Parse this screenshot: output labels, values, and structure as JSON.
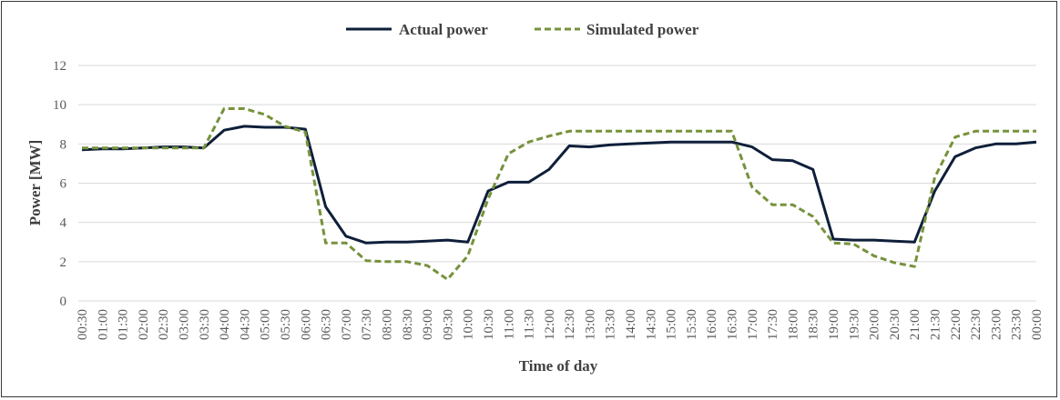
{
  "chart_data": {
    "type": "line",
    "title": "",
    "xlabel": "Time of day",
    "ylabel": "Power [MW]",
    "ylim": [
      0,
      12
    ],
    "yticks": [
      0,
      2,
      4,
      6,
      8,
      10,
      12
    ],
    "grid": "horizontal",
    "legend_position": "top",
    "categories": [
      "00:30",
      "01:00",
      "01:30",
      "02:00",
      "02:30",
      "03:00",
      "03:30",
      "04:00",
      "04:30",
      "05:00",
      "05:30",
      "06:00",
      "06:30",
      "07:00",
      "07:30",
      "08:00",
      "08:30",
      "09:00",
      "09:30",
      "10:00",
      "10:30",
      "11:00",
      "11:30",
      "12:00",
      "12:30",
      "13:00",
      "13:30",
      "14:00",
      "14:30",
      "15:00",
      "15:30",
      "16:00",
      "16:30",
      "17:00",
      "17:30",
      "18:00",
      "18:30",
      "19:00",
      "19:30",
      "20:00",
      "20:30",
      "21:00",
      "21:30",
      "22:00",
      "22:30",
      "23:00",
      "23:30",
      "00:00"
    ],
    "series": [
      {
        "name": "Actual power",
        "color": "#0f1f3a",
        "style": "solid",
        "values": [
          7.7,
          7.75,
          7.75,
          7.8,
          7.85,
          7.85,
          7.8,
          8.7,
          8.9,
          8.85,
          8.85,
          8.75,
          4.8,
          3.3,
          2.95,
          3.0,
          3.0,
          3.05,
          3.1,
          3.0,
          5.6,
          6.05,
          6.05,
          6.7,
          7.9,
          7.85,
          7.95,
          8.0,
          8.05,
          8.1,
          8.1,
          8.1,
          8.1,
          7.85,
          7.2,
          7.15,
          6.7,
          3.15,
          3.1,
          3.1,
          3.05,
          3.0,
          5.6,
          7.35,
          7.8,
          8.0,
          8.0,
          8.1
        ]
      },
      {
        "name": "Simulated power",
        "color": "#76923c",
        "style": "dashed",
        "values": [
          7.8,
          7.8,
          7.8,
          7.8,
          7.8,
          7.8,
          7.8,
          9.8,
          9.8,
          9.5,
          8.9,
          8.6,
          2.95,
          2.95,
          2.05,
          2.0,
          2.0,
          1.8,
          1.1,
          2.3,
          5.2,
          7.5,
          8.1,
          8.4,
          8.65,
          8.65,
          8.65,
          8.65,
          8.65,
          8.65,
          8.65,
          8.65,
          8.65,
          5.8,
          4.9,
          4.9,
          4.3,
          2.95,
          2.9,
          2.3,
          1.95,
          1.75,
          6.3,
          8.35,
          8.65,
          8.65,
          8.65,
          8.65
        ]
      }
    ]
  }
}
